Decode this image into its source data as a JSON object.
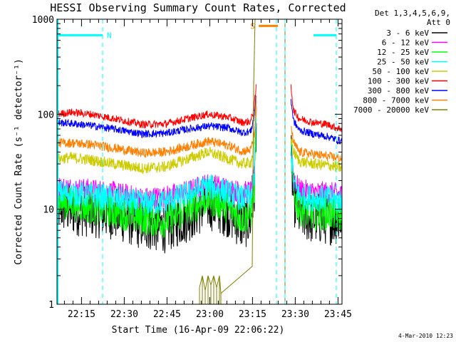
{
  "chart_data": {
    "type": "line",
    "title": "HESSI Observing Summary Count Rates, Corrected",
    "xlabel": "Start Time (16-Apr-09 22:06:22)",
    "ylabel": "Corrected Count Rate (s⁻¹ detector⁻¹)",
    "yscale": "log",
    "ylim": [
      1,
      1000
    ],
    "xlim_minutes": [
      0,
      100
    ],
    "y_ticks": [
      {
        "value": 1,
        "label": "1"
      },
      {
        "value": 10,
        "label": "10"
      },
      {
        "value": 100,
        "label": "100"
      },
      {
        "value": 1000,
        "label": "1000"
      }
    ],
    "x_ticks": [
      {
        "minute": 8.6,
        "label": "22:15"
      },
      {
        "minute": 23.6,
        "label": "22:30"
      },
      {
        "minute": 38.6,
        "label": "22:45"
      },
      {
        "minute": 53.6,
        "label": "23:00"
      },
      {
        "minute": 68.6,
        "label": "23:15"
      },
      {
        "minute": 83.6,
        "label": "23:30"
      },
      {
        "minute": 98.6,
        "label": "23:45"
      }
    ],
    "legend": {
      "title_lines": [
        "Det 1,3,4,5,6,9,",
        "Att 0"
      ],
      "placement": "right"
    },
    "series": [
      {
        "name": "3 - 6 keV",
        "color": "#000000",
        "x": [
          0,
          5,
          12,
          20,
          30,
          38,
          46,
          53,
          60,
          65,
          68,
          69.2,
          70,
          72,
          80,
          82,
          83,
          85,
          90,
          95,
          98,
          100
        ],
        "y": [
          11,
          10,
          9.5,
          9,
          7,
          6.5,
          8.5,
          11.5,
          9.5,
          7,
          8,
          14,
          115,
          null,
          null,
          40,
          13,
          9,
          8,
          8,
          8,
          7.5
        ],
        "noise": 0.28
      },
      {
        "name": "6 - 12 keV",
        "color": "#ff00ff",
        "x": [
          0,
          5,
          12,
          20,
          30,
          38,
          46,
          53,
          60,
          65,
          68,
          69.2,
          70,
          72,
          80,
          82,
          83,
          85,
          90,
          95,
          98,
          100
        ],
        "y": [
          17,
          16.5,
          16,
          15,
          13,
          13.5,
          15.5,
          18.5,
          16.5,
          15,
          15.5,
          22,
          130,
          null,
          null,
          50,
          22,
          16,
          15,
          15,
          14.5,
          14
        ],
        "noise": 0.12
      },
      {
        "name": "12 - 25 keV",
        "color": "#00ff00",
        "x": [
          0,
          5,
          12,
          20,
          30,
          38,
          46,
          53,
          60,
          65,
          68,
          69.2,
          70,
          72,
          80,
          82,
          83,
          85,
          90,
          95,
          98,
          100
        ],
        "y": [
          12,
          11.5,
          10.5,
          9.5,
          8,
          7.5,
          10,
          13,
          10.5,
          8,
          9,
          15,
          120,
          null,
          null,
          45,
          15,
          10,
          9,
          9,
          9,
          8.5
        ],
        "noise": 0.18
      },
      {
        "name": "25 - 50 keV",
        "color": "#00ffff",
        "x": [
          0,
          5,
          12,
          20,
          30,
          38,
          46,
          53,
          60,
          65,
          68,
          69.2,
          70,
          72,
          80,
          82,
          83,
          85,
          90,
          95,
          98,
          100
        ],
        "y": [
          15,
          14.5,
          14,
          13,
          11.5,
          12,
          14.5,
          17.5,
          15,
          13,
          13.5,
          20,
          125,
          null,
          null,
          48,
          19,
          14,
          13,
          13,
          12.5,
          12
        ],
        "noise": 0.14
      },
      {
        "name": "50 - 100 keV",
        "color": "#cccc00",
        "x": [
          0,
          5,
          12,
          20,
          30,
          38,
          46,
          53,
          60,
          65,
          68,
          69.2,
          70,
          72,
          80,
          82,
          83,
          85,
          90,
          95,
          98,
          100
        ],
        "y": [
          34,
          35,
          33,
          30,
          27,
          28,
          34,
          40,
          34,
          30,
          31,
          45,
          140,
          null,
          null,
          60,
          40,
          32,
          30,
          29,
          28,
          27
        ],
        "noise": 0.06
      },
      {
        "name": "100 - 300 keV",
        "color": "#ff0000",
        "x": [
          0,
          5,
          12,
          20,
          30,
          38,
          46,
          53,
          60,
          65,
          68,
          69.2,
          70,
          72,
          80,
          82,
          83,
          85,
          90,
          95,
          98,
          100
        ],
        "y": [
          100,
          105,
          100,
          90,
          78,
          79,
          90,
          100,
          93,
          82,
          84,
          120,
          210,
          null,
          null,
          210,
          110,
          90,
          82,
          78,
          72,
          70
        ],
        "noise": 0.04
      },
      {
        "name": "300 - 800 keV",
        "color": "#0000ff",
        "x": [
          0,
          5,
          12,
          20,
          30,
          38,
          46,
          53,
          60,
          65,
          68,
          69.2,
          70,
          72,
          80,
          82,
          83,
          85,
          90,
          95,
          98,
          100
        ],
        "y": [
          82,
          80,
          76,
          70,
          62,
          63,
          70,
          75,
          72,
          64,
          66,
          95,
          170,
          null,
          null,
          150,
          85,
          68,
          62,
          58,
          54,
          52
        ],
        "noise": 0.04
      },
      {
        "name": "800 - 7000 keV",
        "color": "#ff8000",
        "x": [
          0,
          5,
          12,
          20,
          30,
          38,
          46,
          53,
          60,
          65,
          68,
          69.2,
          70,
          72,
          80,
          82,
          83,
          85,
          90,
          95,
          98,
          100
        ],
        "y": [
          50,
          50,
          48,
          44,
          39,
          40,
          46,
          52,
          47,
          41,
          42,
          60,
          150,
          null,
          null,
          80,
          50,
          40,
          38,
          36,
          35,
          34
        ],
        "noise": 0.05
      },
      {
        "name": "7000 - 20000 keV",
        "color": "#808000",
        "x": [
          50,
          51,
          52,
          53,
          54,
          55,
          56,
          57,
          57.5,
          68.5,
          69,
          69.5,
          70,
          71.5,
          78.5,
          80
        ],
        "y": [
          1.5,
          2,
          1.4,
          2,
          1.6,
          2,
          1.5,
          2,
          1.3,
          2.5,
          200,
          1000,
          1000,
          1000,
          1000,
          1000
        ],
        "noise": 0
      }
    ],
    "annotations": [
      {
        "label": "N",
        "color": "#00ffff",
        "segments_minutes": [
          [
            0,
            16
          ],
          [
            90,
            98
          ]
        ],
        "level": 680
      },
      {
        "label": "S",
        "color": "#ff8000",
        "segments_minutes": [
          [
            70.8,
            77.5
          ]
        ],
        "level": 850
      }
    ],
    "vertical_markers_minutes": [
      0.3,
      16,
      77,
      80,
      98
    ]
  },
  "footer": {
    "timestamp": "4-Mar-2010 12:23"
  }
}
